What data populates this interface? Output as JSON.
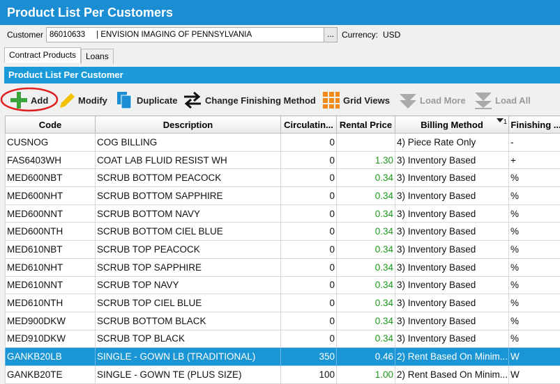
{
  "header": {
    "title": "Product List Per Customers"
  },
  "customer": {
    "label": "Customer",
    "value": "86010633     | ENVISION IMAGING OF PENNSYLVANIA",
    "browse": "...",
    "currency_label": "Currency:",
    "currency": "USD"
  },
  "tabs": [
    "Contract Products",
    "Loans"
  ],
  "panel": {
    "title": "Product List Per Customer"
  },
  "toolbar": [
    "Add",
    "Modify",
    "Duplicate",
    "Change Finishing Method",
    "Grid Views",
    "Load More",
    "Load All"
  ],
  "table": {
    "columns": [
      "Code",
      "Description",
      "Circulatin...",
      "Rental Price",
      "Billing Method",
      "Finishing ..."
    ],
    "sort_index": "1",
    "selected_row": 12,
    "rows": [
      [
        "CUSNOG",
        "COG BILLING",
        "0",
        null,
        "4) Piece Rate Only",
        "-"
      ],
      [
        "FAS6403WH",
        "COAT LAB FLUID RESIST WH",
        "0",
        "1.30",
        "3) Inventory Based",
        "+"
      ],
      [
        "MED600NBT",
        "SCRUB BOTTOM PEACOCK",
        "0",
        "0.34",
        "3) Inventory Based",
        "%"
      ],
      [
        "MED600NHT",
        "SCRUB BOTTOM SAPPHIRE",
        "0",
        "0.34",
        "3) Inventory Based",
        "%"
      ],
      [
        "MED600NNT",
        "SCRUB BOTTOM NAVY",
        "0",
        "0.34",
        "3) Inventory Based",
        "%"
      ],
      [
        "MED600NTH",
        "SCRUB BOTTOM CIEL BLUE",
        "0",
        "0.34",
        "3) Inventory Based",
        "%"
      ],
      [
        "MED610NBT",
        "SCRUB TOP PEACOCK",
        "0",
        "0.34",
        "3) Inventory Based",
        "%"
      ],
      [
        "MED610NHT",
        "SCRUB TOP SAPPHIRE",
        "0",
        "0.34",
        "3) Inventory Based",
        "%"
      ],
      [
        "MED610NNT",
        "SCRUB TOP NAVY",
        "0",
        "0.34",
        "3) Inventory Based",
        "%"
      ],
      [
        "MED610NTH",
        "SCRUB TOP CIEL BLUE",
        "0",
        "0.34",
        "3) Inventory Based",
        "%"
      ],
      [
        "MED900DKW",
        "SCRUB BOTTOM BLACK",
        "0",
        "0.34",
        "3) Inventory Based",
        "%"
      ],
      [
        "MED910DKW",
        "SCRUB TOP BLACK",
        "0",
        "0.34",
        "3) Inventory Based",
        "%"
      ],
      [
        "GANKB20LB",
        "SINGLE - GOWN LB (TRADITIONAL)",
        "350",
        "0.46",
        "2) Rent Based On Minim...",
        "W"
      ],
      [
        "GANKB20TE",
        "SINGLE - GOWN TE (PLUS SIZE)",
        "100",
        "1.00",
        "2) Rent Based On Minim...",
        "W"
      ]
    ]
  }
}
